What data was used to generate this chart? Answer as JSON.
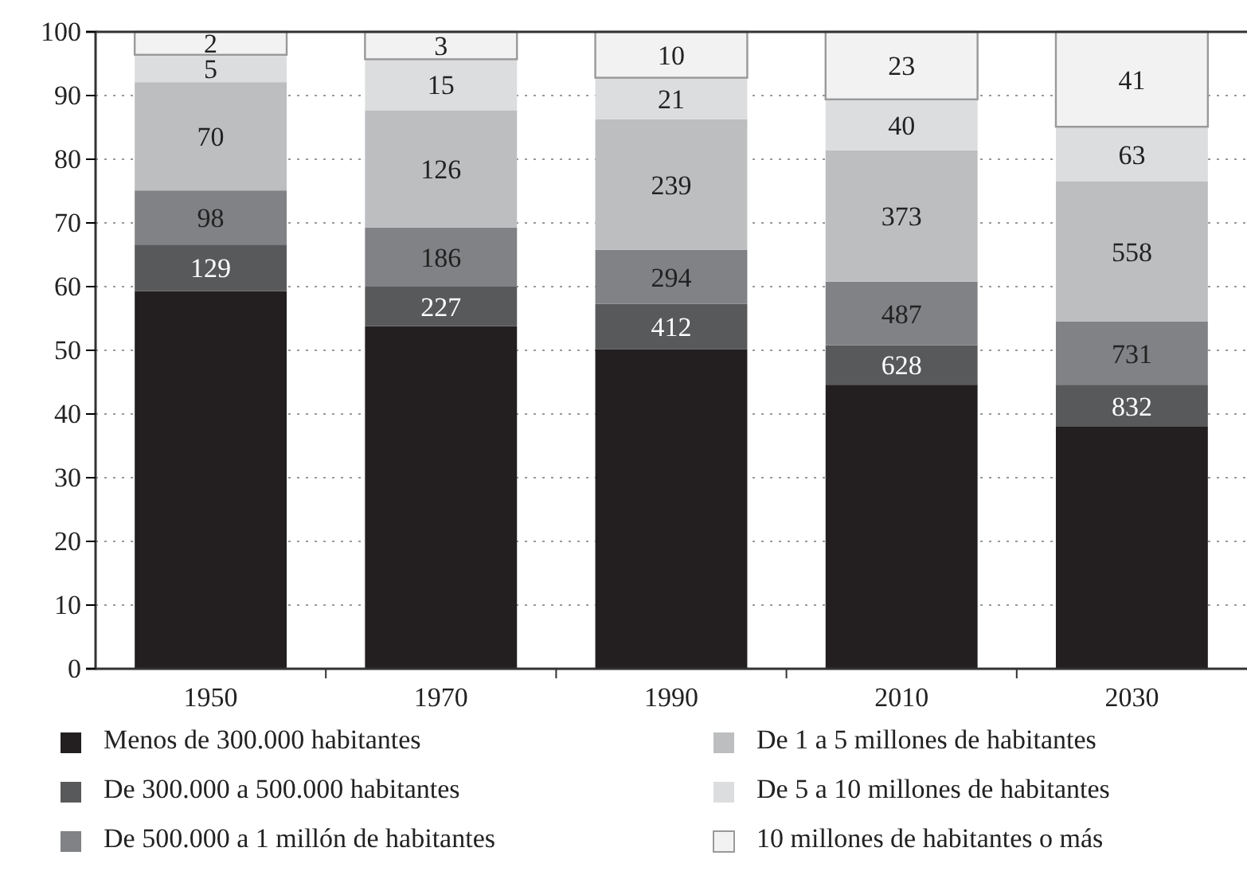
{
  "chart_data": {
    "type": "bar",
    "stacked": true,
    "categories": [
      "1950",
      "1970",
      "1990",
      "2010",
      "2030"
    ],
    "ylim": [
      0,
      100
    ],
    "yticks": [
      0,
      10,
      20,
      30,
      40,
      50,
      60,
      70,
      80,
      90,
      100
    ],
    "grid": "y",
    "legend": "bottom",
    "series": [
      {
        "name": "Menos de 300.000 habitantes",
        "color": "#231f20",
        "values": [
          59.3,
          53.8,
          50.2,
          44.6,
          38.0
        ]
      },
      {
        "name": "De 300.000 a 500.000 habitantes",
        "color": "#58595b",
        "values": [
          7.3,
          6.2,
          7.1,
          6.2,
          6.6
        ]
      },
      {
        "name": "De 500.000 a 1 millón de habitantes",
        "color": "#808285",
        "values": [
          8.5,
          9.3,
          8.5,
          10.0,
          9.9
        ]
      },
      {
        "name": "De 1 a 5 millones de habitantes",
        "color": "#bcbec0",
        "values": [
          17.0,
          18.4,
          20.5,
          20.6,
          22.0
        ]
      },
      {
        "name": "De 5 a 10 millones de habitantes",
        "color": "#dcdddf",
        "values": [
          4.3,
          8.0,
          6.5,
          8.0,
          8.6
        ]
      },
      {
        "name": "10 millones de habitantes o más",
        "color": "#f2f2f2",
        "values": [
          3.6,
          4.3,
          7.2,
          10.6,
          14.9
        ]
      }
    ],
    "annotations": [
      "129",
      "98",
      "70",
      "5",
      "2",
      "227",
      "186",
      "126",
      "15",
      "3",
      "412",
      "294",
      "239",
      "21",
      "10",
      "628",
      "487",
      "373",
      "40",
      "23",
      "832",
      "731",
      "558",
      "63",
      "41"
    ]
  }
}
